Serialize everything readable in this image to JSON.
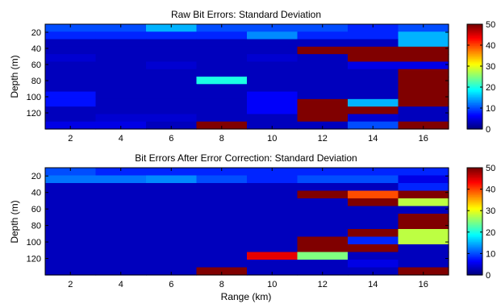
{
  "chart_data": [
    {
      "type": "heatmap",
      "title": "Raw Bit Errors: Standard Deviation",
      "xlabel": "",
      "ylabel": "Depth (m)",
      "x_ticks": [
        "2",
        "4",
        "6",
        "8",
        "10",
        "12",
        "14",
        "16"
      ],
      "y_ticks": [
        "20",
        "40",
        "60",
        "80",
        "100",
        "120"
      ],
      "x_range": [
        1,
        17
      ],
      "y_range_reversed": [
        10,
        140
      ],
      "x_centers": [
        1.95,
        3.9,
        5.85,
        7.8,
        9.75,
        11.7,
        13.65,
        15.6
      ],
      "y_centers": [
        14,
        23,
        32,
        41,
        50,
        59,
        68,
        77,
        86,
        95,
        104,
        113,
        122,
        131
      ],
      "colorbar_ticks": [
        "0",
        "10",
        "20",
        "30",
        "40",
        "50"
      ],
      "clim": [
        0,
        50
      ],
      "colormap": "jet",
      "values": [
        [
          10,
          10,
          15,
          10,
          10,
          10,
          8,
          10
        ],
        [
          8,
          8,
          8,
          8,
          13,
          8,
          8,
          15
        ],
        [
          3,
          3,
          3,
          3,
          3,
          3,
          3,
          15
        ],
        [
          3,
          3,
          3,
          3,
          3,
          50,
          50,
          50
        ],
        [
          4,
          3,
          3,
          3,
          4,
          3,
          50,
          50
        ],
        [
          3,
          3,
          4,
          3,
          3,
          3,
          5,
          5
        ],
        [
          3,
          3,
          3,
          3,
          3,
          3,
          3,
          50
        ],
        [
          3,
          3,
          3,
          20,
          3,
          3,
          3,
          50
        ],
        [
          3,
          3,
          3,
          3,
          3,
          3,
          3,
          50
        ],
        [
          7,
          3,
          3,
          3,
          6,
          3,
          3,
          50
        ],
        [
          7,
          3,
          3,
          3,
          6,
          50,
          15,
          50
        ],
        [
          3,
          3,
          3,
          3,
          6,
          50,
          50,
          3
        ],
        [
          3,
          4,
          4,
          3,
          3,
          50,
          4,
          3
        ],
        [
          5,
          5,
          3,
          50,
          3,
          3,
          10,
          50
        ]
      ]
    },
    {
      "type": "heatmap",
      "title": "Bit Errors After Error Correction: Standard Deviation",
      "xlabel": "Range (km)",
      "ylabel": "Depth (m)",
      "x_ticks": [
        "2",
        "4",
        "6",
        "8",
        "10",
        "12",
        "14",
        "16"
      ],
      "y_ticks": [
        "20",
        "40",
        "60",
        "80",
        "100",
        "120"
      ],
      "x_range": [
        1,
        17
      ],
      "y_range_reversed": [
        10,
        140
      ],
      "x_centers": [
        1.95,
        3.9,
        5.85,
        7.8,
        9.75,
        11.7,
        13.65,
        15.6
      ],
      "y_centers": [
        14,
        23,
        32,
        41,
        50,
        59,
        68,
        77,
        86,
        95,
        104,
        113,
        122,
        131
      ],
      "colorbar_ticks": [
        "0",
        "10",
        "20",
        "30",
        "40",
        "50"
      ],
      "clim": [
        0,
        50
      ],
      "colormap": "jet",
      "values": [
        [
          10,
          8,
          8,
          8,
          8,
          8,
          8,
          8
        ],
        [
          12,
          12,
          13,
          10,
          8,
          10,
          10,
          5
        ],
        [
          3,
          3,
          3,
          3,
          3,
          3,
          3,
          8
        ],
        [
          3,
          3,
          3,
          3,
          3,
          50,
          40,
          50
        ],
        [
          3,
          3,
          3,
          3,
          3,
          3,
          50,
          28
        ],
        [
          3,
          3,
          3,
          3,
          3,
          3,
          3,
          3
        ],
        [
          3,
          3,
          3,
          3,
          3,
          3,
          3,
          50
        ],
        [
          3,
          3,
          3,
          3,
          3,
          3,
          3,
          50
        ],
        [
          3,
          3,
          3,
          3,
          3,
          3,
          50,
          28
        ],
        [
          3,
          3,
          3,
          3,
          3,
          50,
          8,
          28
        ],
        [
          3,
          3,
          3,
          3,
          3,
          50,
          50,
          3
        ],
        [
          3,
          3,
          3,
          3,
          45,
          25,
          3,
          3
        ],
        [
          3,
          3,
          3,
          3,
          3,
          3,
          5,
          3
        ],
        [
          3,
          3,
          3,
          50,
          3,
          3,
          3,
          50
        ]
      ]
    }
  ]
}
